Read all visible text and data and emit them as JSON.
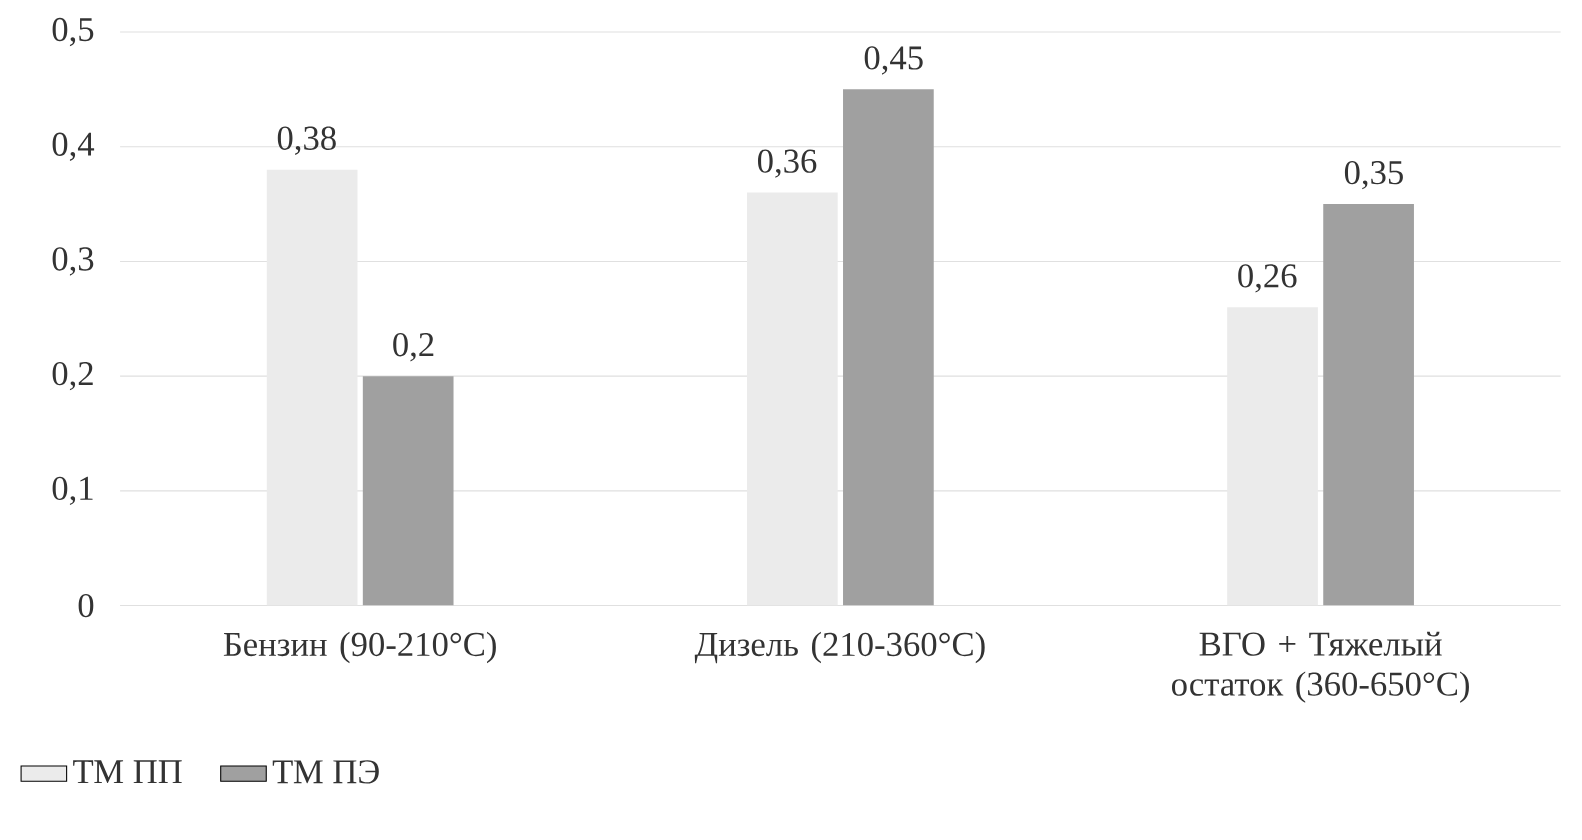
{
  "chart_data": {
    "type": "bar",
    "categories": [
      "Бензин (90-210°C)",
      "Дизель (210-360°C)",
      "ВГО + Тяжелый остаток (360-650°C)"
    ],
    "series": [
      {
        "name": "ТМ ПП",
        "color": "#ebebeb",
        "values": [
          0.38,
          0.36,
          0.26
        ],
        "value_labels": [
          "0,38",
          "0,36",
          "0,26"
        ]
      },
      {
        "name": "ТМ ПЭ",
        "color": "#a0a0a0",
        "values": [
          0.2,
          0.45,
          0.35
        ],
        "value_labels": [
          "0,2",
          "0,45",
          "0,35"
        ]
      }
    ],
    "ylim": [
      0,
      0.5
    ],
    "yticks": [
      {
        "value": 0,
        "label": "0"
      },
      {
        "value": 0.1,
        "label": "0,1"
      },
      {
        "value": 0.2,
        "label": "0,2"
      },
      {
        "value": 0.3,
        "label": "0,3"
      },
      {
        "value": 0.4,
        "label": "0,4"
      },
      {
        "value": 0.5,
        "label": "0,5"
      }
    ],
    "grid": "y",
    "legend": "bottom left"
  }
}
